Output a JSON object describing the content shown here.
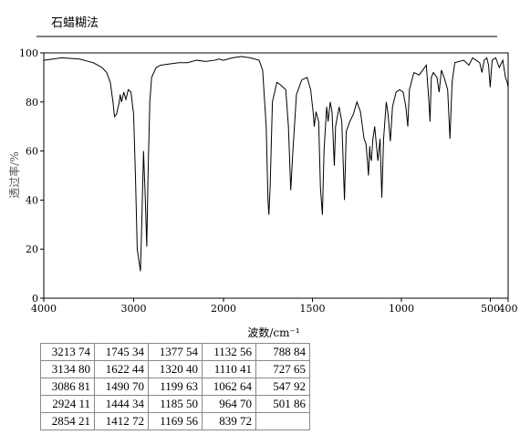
{
  "chart_data": {
    "type": "line",
    "title": "石蜡糊法",
    "xlabel": "波数/cm⁻¹",
    "ylabel": "透过率/%",
    "color": "#000000",
    "scale_break": 2000,
    "xlim": [
      4000,
      400
    ],
    "xticks": [
      4000,
      3000,
      2000,
      1500,
      1000,
      500,
      400
    ],
    "ylim": [
      0,
      100
    ],
    "yticks": [
      0,
      20,
      40,
      60,
      80,
      100
    ],
    "x": [
      4000,
      3800,
      3600,
      3500,
      3450,
      3400,
      3350,
      3300,
      3260,
      3230,
      3213,
      3190,
      3160,
      3150,
      3134,
      3110,
      3086,
      3060,
      3030,
      3000,
      2980,
      2960,
      2940,
      2924,
      2910,
      2890,
      2870,
      2854,
      2840,
      2820,
      2800,
      2750,
      2700,
      2600,
      2500,
      2400,
      2300,
      2200,
      2100,
      2050,
      2000,
      1950,
      1900,
      1850,
      1800,
      1780,
      1760,
      1750,
      1745,
      1738,
      1725,
      1700,
      1680,
      1650,
      1635,
      1622,
      1610,
      1590,
      1560,
      1530,
      1510,
      1495,
      1490,
      1480,
      1465,
      1455,
      1444,
      1435,
      1420,
      1412,
      1400,
      1390,
      1377,
      1370,
      1350,
      1335,
      1320,
      1310,
      1290,
      1270,
      1250,
      1230,
      1210,
      1199,
      1190,
      1185,
      1178,
      1175,
      1169,
      1160,
      1150,
      1140,
      1132,
      1120,
      1110,
      1100,
      1085,
      1075,
      1062,
      1050,
      1030,
      1010,
      990,
      975,
      964,
      955,
      930,
      900,
      880,
      860,
      845,
      839,
      832,
      820,
      800,
      788,
      775,
      760,
      740,
      727,
      715,
      700,
      650,
      620,
      600,
      580,
      560,
      547,
      535,
      520,
      510,
      501,
      490,
      470,
      450,
      430,
      415,
      405,
      400
    ],
    "values": [
      97,
      98,
      97.5,
      96.5,
      96,
      95,
      94,
      92,
      88,
      80,
      74,
      75,
      80,
      83,
      80,
      84,
      81,
      85,
      84,
      75,
      50,
      20,
      15,
      11,
      30,
      60,
      40,
      21,
      50,
      80,
      90,
      94,
      95,
      95.5,
      96,
      96,
      97,
      96.5,
      97,
      97.5,
      97,
      98,
      98.5,
      98,
      97,
      93,
      70,
      40,
      34,
      45,
      80,
      88,
      87,
      85,
      70,
      44,
      60,
      83,
      89,
      90,
      85,
      75,
      70,
      76,
      72,
      45,
      34,
      60,
      78,
      72,
      80,
      76,
      54,
      70,
      78,
      72,
      40,
      68,
      72,
      75,
      80,
      76,
      65,
      63,
      55,
      50,
      62,
      58,
      56,
      65,
      70,
      62,
      56,
      65,
      41,
      65,
      80,
      75,
      64,
      78,
      84,
      85,
      84,
      78,
      70,
      85,
      92,
      91,
      93,
      95,
      80,
      72,
      90,
      92,
      90,
      84,
      93,
      90,
      85,
      65,
      88,
      96,
      97,
      95,
      98,
      97,
      96,
      92,
      97,
      98,
      95,
      86,
      97,
      98,
      94,
      97,
      90,
      88,
      86
    ]
  },
  "table": {
    "rows": [
      [
        "3213 74",
        "1745 34",
        "1377 54",
        "1132 56",
        "788 84"
      ],
      [
        "3134 80",
        "1622 44",
        "1320 40",
        "1110 41",
        "727 65"
      ],
      [
        "3086 81",
        "1490 70",
        "1199 63",
        "1062 64",
        "547 92"
      ],
      [
        "2924 11",
        "1444 34",
        "1185 50",
        " 964 70",
        "501 86"
      ],
      [
        "2854 21",
        "1412 72",
        "1169 56",
        " 839 72"
      ]
    ]
  }
}
